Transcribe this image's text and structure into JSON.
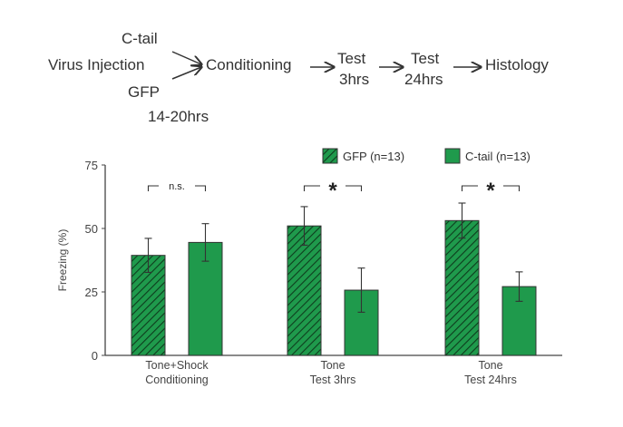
{
  "diagram": {
    "virus": "Virus Injection",
    "ctail": "C-tail",
    "gfp": "GFP",
    "interval": "14-20hrs",
    "conditioning": "Conditioning",
    "test3_line1": "Test",
    "test3_line2": "3hrs",
    "test24_line1": "Test",
    "test24_line2": "24hrs",
    "histology": "Histology"
  },
  "chart_data": {
    "type": "bar",
    "title": "",
    "xlabel": "",
    "ylabel": "Freezing (%)",
    "ylim": [
      0,
      75
    ],
    "yticks": [
      "0",
      "25",
      "50",
      "75"
    ],
    "categories": [
      [
        "Tone+Shock",
        "Conditioning"
      ],
      [
        "Tone",
        "Test 3hrs"
      ],
      [
        "Tone",
        "Test 24hrs"
      ]
    ],
    "series": [
      {
        "name": "GFP (n=13)",
        "values": [
          39.4,
          51,
          53.1
        ],
        "errors": [
          6.7,
          7.6,
          6.9
        ],
        "pattern": "hatched",
        "color": "#1f9a4c"
      },
      {
        "name": "C-tail (n=13)",
        "values": [
          44.5,
          25.7,
          27.1
        ],
        "errors": [
          7.4,
          8.7,
          5.8
        ],
        "pattern": "solid",
        "color": "#1f9a4c"
      }
    ],
    "significance": [
      "n.s.",
      "*",
      "*"
    ],
    "legend": "top-right",
    "grid": false
  }
}
